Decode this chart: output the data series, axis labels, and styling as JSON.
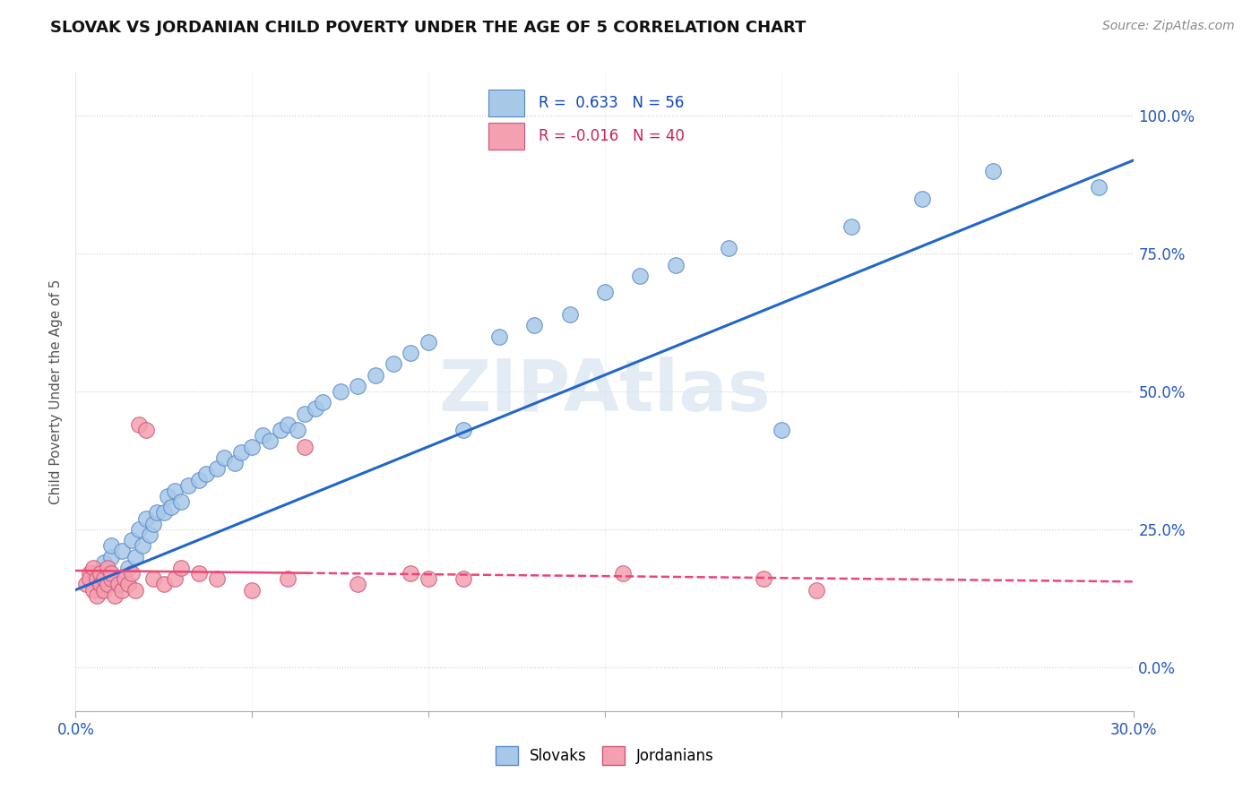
{
  "title": "SLOVAK VS JORDANIAN CHILD POVERTY UNDER THE AGE OF 5 CORRELATION CHART",
  "source": "Source: ZipAtlas.com",
  "ylabel": "Child Poverty Under the Age of 5",
  "ylabel_right_ticks": [
    "0.0%",
    "25.0%",
    "50.0%",
    "75.0%",
    "100.0%"
  ],
  "ylabel_right_vals": [
    0.0,
    0.25,
    0.5,
    0.75,
    1.0
  ],
  "x_min": 0.0,
  "x_max": 0.3,
  "y_min": -0.08,
  "y_max": 1.08,
  "slovak_color": "#A8C8E8",
  "jordanian_color": "#F4A0B0",
  "slovak_edge": "#5588CC",
  "jordanian_edge": "#CC5577",
  "trend_slovak_color": "#2266CC",
  "trend_jordan_color": "#EE4477",
  "legend_R_slovak": "0.633",
  "legend_N_slovak": "56",
  "legend_R_jordan": "-0.016",
  "legend_N_jordan": "40",
  "watermark": "ZIPAtlas",
  "background_color": "#ffffff",
  "slovak_x": [
    0.005,
    0.007,
    0.008,
    0.01,
    0.01,
    0.012,
    0.013,
    0.015,
    0.016,
    0.017,
    0.018,
    0.019,
    0.02,
    0.021,
    0.022,
    0.023,
    0.025,
    0.026,
    0.027,
    0.028,
    0.03,
    0.032,
    0.035,
    0.037,
    0.04,
    0.042,
    0.045,
    0.047,
    0.05,
    0.053,
    0.055,
    0.058,
    0.06,
    0.063,
    0.065,
    0.068,
    0.07,
    0.075,
    0.08,
    0.085,
    0.09,
    0.095,
    0.1,
    0.11,
    0.12,
    0.13,
    0.14,
    0.15,
    0.16,
    0.17,
    0.185,
    0.2,
    0.22,
    0.24,
    0.26,
    0.29
  ],
  "slovak_y": [
    0.17,
    0.14,
    0.19,
    0.2,
    0.22,
    0.16,
    0.21,
    0.18,
    0.23,
    0.2,
    0.25,
    0.22,
    0.27,
    0.24,
    0.26,
    0.28,
    0.28,
    0.31,
    0.29,
    0.32,
    0.3,
    0.33,
    0.34,
    0.35,
    0.36,
    0.38,
    0.37,
    0.39,
    0.4,
    0.42,
    0.41,
    0.43,
    0.44,
    0.43,
    0.46,
    0.47,
    0.48,
    0.5,
    0.51,
    0.53,
    0.55,
    0.57,
    0.59,
    0.43,
    0.6,
    0.62,
    0.64,
    0.68,
    0.71,
    0.73,
    0.76,
    0.43,
    0.8,
    0.85,
    0.9,
    0.87
  ],
  "jordanian_x": [
    0.003,
    0.004,
    0.004,
    0.005,
    0.005,
    0.006,
    0.006,
    0.007,
    0.007,
    0.008,
    0.008,
    0.009,
    0.009,
    0.01,
    0.01,
    0.011,
    0.012,
    0.013,
    0.014,
    0.015,
    0.016,
    0.017,
    0.018,
    0.02,
    0.022,
    0.025,
    0.028,
    0.03,
    0.035,
    0.04,
    0.05,
    0.06,
    0.065,
    0.08,
    0.095,
    0.1,
    0.11,
    0.155,
    0.195,
    0.21
  ],
  "jordanian_y": [
    0.15,
    0.17,
    0.16,
    0.14,
    0.18,
    0.13,
    0.16,
    0.15,
    0.17,
    0.14,
    0.16,
    0.15,
    0.18,
    0.16,
    0.17,
    0.13,
    0.15,
    0.14,
    0.16,
    0.15,
    0.17,
    0.14,
    0.44,
    0.43,
    0.16,
    0.15,
    0.16,
    0.18,
    0.17,
    0.16,
    0.14,
    0.16,
    0.4,
    0.15,
    0.17,
    0.16,
    0.16,
    0.17,
    0.16,
    0.14
  ],
  "slovak_trend_x0": 0.0,
  "slovak_trend_y0": 0.14,
  "slovak_trend_x1": 0.3,
  "slovak_trend_y1": 0.92,
  "jordan_trend_x0": 0.0,
  "jordan_trend_y0": 0.175,
  "jordan_trend_x1": 0.3,
  "jordan_trend_y1": 0.155
}
